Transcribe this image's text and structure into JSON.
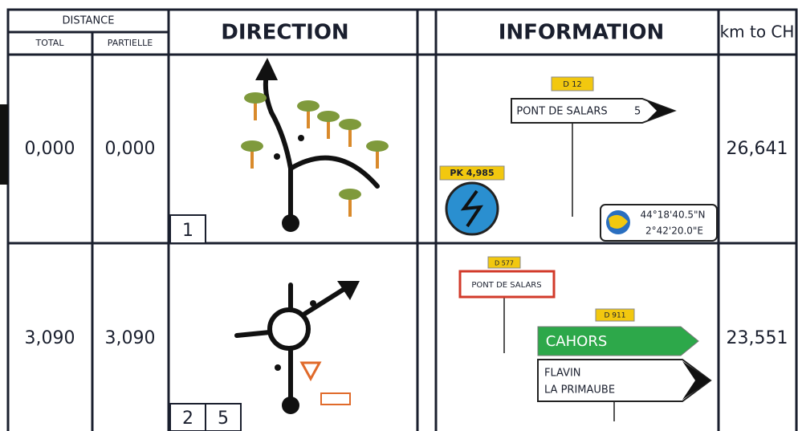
{
  "header": {
    "distance": "DISTANCE",
    "total": "TOTAL",
    "partielle": "PARTIELLE",
    "direction": "DIRECTION",
    "information": "INFORMATION",
    "km_to_ch": "km to CH"
  },
  "rows": [
    {
      "total": "0,000",
      "partielle": "0,000",
      "numbers": [
        "1"
      ],
      "road_tag": "D 12",
      "sign": "PONT DE SALARS",
      "sign_distance": "5",
      "pk": "PK 4,985",
      "gps_lat": "44°18'40.5\"N",
      "gps_lon": "2°42'20.0\"E",
      "km_to_ch": "26,641"
    },
    {
      "total": "3,090",
      "partielle": "3,090",
      "numbers": [
        "2",
        "5"
      ],
      "tag_town": "D 577",
      "town": "PONT DE SALARS",
      "road_tag": "D 911",
      "green_sign": "CAHORS",
      "white_sign": [
        "FLAVIN",
        "LA PRIMAUBE"
      ],
      "km_to_ch": "23,551"
    }
  ]
}
